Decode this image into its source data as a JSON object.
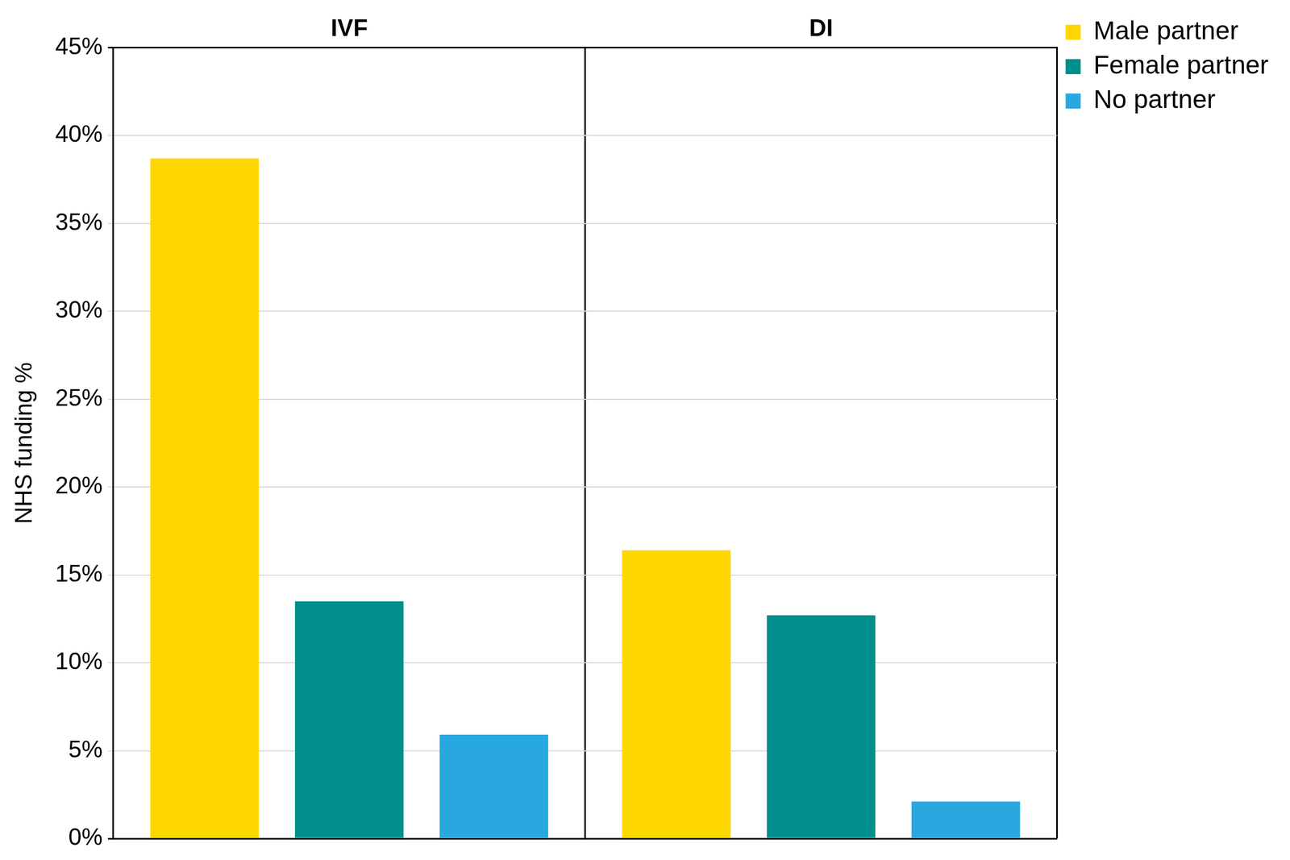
{
  "chart_data": {
    "type": "bar",
    "categories": [
      "IVF",
      "DI"
    ],
    "series": [
      {
        "name": "Male partner",
        "color": "#FFD700",
        "values": [
          38.7,
          16.4
        ]
      },
      {
        "name": "Female partner",
        "color": "#008F8C",
        "values": [
          13.5,
          12.7
        ]
      },
      {
        "name": "No partner",
        "color": "#29A8E0",
        "values": [
          5.9,
          2.1
        ]
      }
    ],
    "y_label": "NHS funding %",
    "ylim": [
      0,
      45
    ],
    "yticks": [
      {
        "value": 0,
        "label": "0%"
      },
      {
        "value": 5,
        "label": "5%"
      },
      {
        "value": 10,
        "label": "10%"
      },
      {
        "value": 15,
        "label": "15%"
      },
      {
        "value": 20,
        "label": "20%"
      },
      {
        "value": 25,
        "label": "25%"
      },
      {
        "value": 30,
        "label": "30%"
      },
      {
        "value": 35,
        "label": "35%"
      },
      {
        "value": 40,
        "label": "40%"
      },
      {
        "value": 45,
        "label": "45%"
      }
    ],
    "grid": true,
    "legend": "right"
  }
}
